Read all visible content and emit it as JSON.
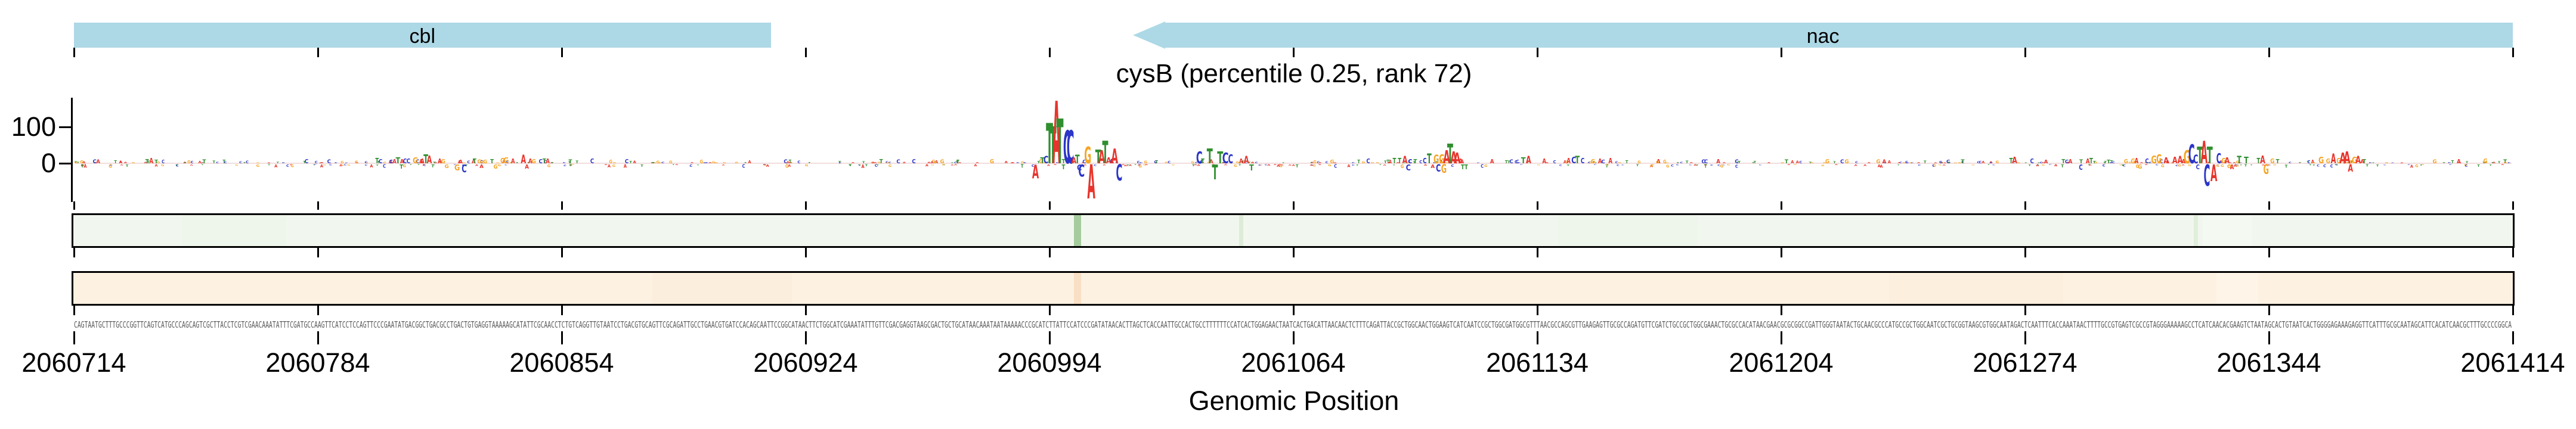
{
  "figure": {
    "title": "cysB (percentile 0.25, rank 72)",
    "xlabel": "Genomic Position"
  },
  "chart_data": {
    "type": "genomic-logo",
    "title": "cysB (percentile 0.25, rank 72)",
    "xlabel": "Genomic Position",
    "x_axis": {
      "start": 2060714,
      "end": 2061414,
      "tick_interval": 70,
      "ticks": [
        2060714,
        2060784,
        2060854,
        2060924,
        2060994,
        2061064,
        2061134,
        2061204,
        2061274,
        2061344,
        2061414
      ]
    },
    "y_axis": {
      "ticks": [
        {
          "value": 100
        },
        {
          "value": 0
        }
      ]
    },
    "gene_color": "#add8e6",
    "genes": [
      {
        "name": "cbl",
        "start": 2060714,
        "end": 2060914,
        "strand": "+"
      },
      {
        "name": "nac",
        "start": 2061018,
        "end": 2061414,
        "strand": "-"
      }
    ],
    "tracks": [
      {
        "id": "upper",
        "fill": "#f1f7ee",
        "stripes": [
          {
            "pos": 2061002,
            "width_bp": 2,
            "color": "#a5cc9d"
          },
          {
            "pos": 2061049,
            "width_bp": 1.2,
            "color": "#ddecd8"
          },
          {
            "pos": 2061323,
            "width_bp": 1.2,
            "color": "#e0eedb"
          },
          {
            "pos": 2060760,
            "width_bp": 30,
            "color": "#eef5ea"
          },
          {
            "pos": 2061160,
            "width_bp": 40,
            "color": "#eef5eb"
          },
          {
            "pos": 2061332,
            "width_bp": 14,
            "color": "#f4f9f2"
          }
        ]
      },
      {
        "id": "lower",
        "fill": "#fdf1e2",
        "stripes": [
          {
            "pos": 2061002,
            "width_bp": 2,
            "color": "#f9dfc4"
          },
          {
            "pos": 2060900,
            "width_bp": 40,
            "color": "#fceedd"
          },
          {
            "pos": 2061260,
            "width_bp": 50,
            "color": "#fcefde"
          },
          {
            "pos": 2061335,
            "width_bp": 12,
            "color": "#fef4e8"
          }
        ]
      }
    ],
    "logo": {
      "colors": {
        "A": "#e8342c",
        "C": "#2b35c7",
        "G": "#f5a525",
        "T": "#2f8f2f"
      },
      "noise": {
        "seed": 1337,
        "count": 630,
        "h_max": 6
      },
      "letters": [
        [
          2060735,
          "T",
          7
        ],
        [
          2060736.2,
          "A",
          9
        ],
        [
          2060737.6,
          "T",
          6
        ],
        [
          2060801,
          "T",
          9
        ],
        [
          2060802,
          "C",
          7
        ],
        [
          2060805,
          "C",
          6
        ],
        [
          2060806,
          "A",
          7
        ],
        [
          2060807,
          "T",
          10
        ],
        [
          2060808,
          "T",
          -7
        ],
        [
          2060809,
          "C",
          8
        ],
        [
          2060810,
          "C",
          8
        ],
        [
          2060812,
          "G",
          10
        ],
        [
          2060814,
          "A",
          8
        ],
        [
          2060815,
          "T",
          15
        ],
        [
          2060816,
          "A",
          13
        ],
        [
          2060817,
          "T",
          -5
        ],
        [
          2060819,
          "A",
          8
        ],
        [
          2060820,
          "G",
          7
        ],
        [
          2060821,
          "G",
          -6
        ],
        [
          2060824,
          "G",
          -10
        ],
        [
          2060825,
          "A",
          6
        ],
        [
          2060826,
          "C",
          -13
        ],
        [
          2060829,
          "T",
          8
        ],
        [
          2060831,
          "A",
          -6
        ],
        [
          2060832,
          "G",
          6
        ],
        [
          2060834,
          "T",
          7
        ],
        [
          2060835,
          "G",
          -7
        ],
        [
          2060837,
          "G",
          9
        ],
        [
          2060838,
          "G",
          10
        ],
        [
          2060840,
          "A",
          8
        ],
        [
          2060843,
          "A",
          14
        ],
        [
          2060844,
          "A",
          -7
        ],
        [
          2060845,
          "A",
          8
        ],
        [
          2060846,
          "G",
          7
        ],
        [
          2060849,
          "T",
          8
        ],
        [
          2060850,
          "A",
          8
        ],
        [
          2060990,
          "A",
          -23
        ],
        [
          2060992,
          "T",
          10
        ],
        [
          2060993,
          "C",
          12
        ],
        [
          2060994,
          "T",
          68
        ],
        [
          2060995,
          "T",
          62
        ],
        [
          2060996,
          "A",
          105
        ],
        [
          2060997,
          "T",
          75
        ],
        [
          2060998,
          "T",
          -8
        ],
        [
          2060999,
          "C",
          55
        ],
        [
          2061000,
          "C",
          55
        ],
        [
          2061001,
          "A",
          10
        ],
        [
          2061002,
          "T",
          14
        ],
        [
          2061002.6,
          "C",
          -10
        ],
        [
          2061003.2,
          "C",
          -20
        ],
        [
          2061004,
          "C",
          6
        ],
        [
          2061005,
          "G",
          28
        ],
        [
          2061006,
          "A",
          -57
        ],
        [
          2061008,
          "T",
          23
        ],
        [
          2061009,
          "A",
          22
        ],
        [
          2061010,
          "T",
          38
        ],
        [
          2061011,
          "A",
          10
        ],
        [
          2061012,
          "C",
          8
        ],
        [
          2061012.7,
          "A",
          25
        ],
        [
          2061014,
          "C",
          -27
        ],
        [
          2061037,
          "C",
          20
        ],
        [
          2061038,
          "T",
          8
        ],
        [
          2061040,
          "T",
          25
        ],
        [
          2061041.5,
          "T",
          -25
        ],
        [
          2061043,
          "T",
          20
        ],
        [
          2061044.5,
          "C",
          18
        ],
        [
          2061046,
          "C",
          15
        ],
        [
          2061049,
          "A",
          8
        ],
        [
          2061050.5,
          "A",
          12
        ],
        [
          2061052,
          "T",
          -10
        ],
        [
          2061093,
          "T",
          9
        ],
        [
          2061094.5,
          "T",
          9
        ],
        [
          2061096,
          "A",
          12
        ],
        [
          2061097,
          "C",
          -10
        ],
        [
          2061099,
          "T",
          7
        ],
        [
          2061101.7,
          "C",
          9
        ],
        [
          2061103,
          "T",
          16
        ],
        [
          2061104,
          "A",
          -6
        ],
        [
          2061105,
          "G",
          14
        ],
        [
          2061105.6,
          "C",
          -12
        ],
        [
          2061106.6,
          "G",
          15
        ],
        [
          2061107.2,
          "G",
          -14
        ],
        [
          2061108,
          "A",
          22
        ],
        [
          2061109,
          "T",
          33
        ],
        [
          2061110,
          "A",
          20
        ],
        [
          2061111,
          "A",
          18
        ],
        [
          2061112,
          "A",
          8
        ],
        [
          2061112.6,
          "T",
          -8
        ],
        [
          2061113.6,
          "T",
          -8
        ],
        [
          2061130,
          "T",
          10
        ],
        [
          2061131.5,
          "A",
          12
        ],
        [
          2061136,
          "A",
          8
        ],
        [
          2061143,
          "A",
          9
        ],
        [
          2061144.5,
          "C",
          11
        ],
        [
          2061145.5,
          "T",
          12
        ],
        [
          2061147,
          "C",
          9
        ],
        [
          2061150,
          "G",
          7
        ],
        [
          2061152,
          "A",
          8
        ],
        [
          2061155,
          "A",
          9
        ],
        [
          2061270,
          "T",
          9
        ],
        [
          2061271,
          "A",
          11
        ],
        [
          2061276,
          "C",
          8
        ],
        [
          2061280,
          "A",
          6
        ],
        [
          2061285,
          "T",
          7
        ],
        [
          2061286,
          "C",
          6
        ],
        [
          2061287,
          "A",
          7
        ],
        [
          2061290,
          "C",
          -9
        ],
        [
          2061292,
          "A",
          8
        ],
        [
          2061293,
          "T",
          9
        ],
        [
          2061298,
          "T",
          6
        ],
        [
          2061303,
          "G",
          7
        ],
        [
          2061305,
          "G",
          8
        ],
        [
          2061306,
          "A",
          9
        ],
        [
          2061307,
          "G",
          -7
        ],
        [
          2061309,
          "C",
          8
        ],
        [
          2061311,
          "G",
          13
        ],
        [
          2061312.5,
          "G",
          15
        ],
        [
          2061314.5,
          "A",
          10
        ],
        [
          2061317,
          "A",
          11
        ],
        [
          2061318.5,
          "A",
          12
        ],
        [
          2061319.5,
          "A",
          7
        ],
        [
          2061320.5,
          "G",
          22
        ],
        [
          2061321.8,
          "C",
          32
        ],
        [
          2061323,
          "C",
          14
        ],
        [
          2061323.6,
          "C",
          -8
        ],
        [
          2061324.2,
          "T",
          28
        ],
        [
          2061325.4,
          "A",
          38
        ],
        [
          2061326.2,
          "C",
          -36
        ],
        [
          2061327,
          "T",
          28
        ],
        [
          2061328.2,
          "A",
          -28
        ],
        [
          2061329.6,
          "C",
          17
        ],
        [
          2061331,
          "G",
          9
        ],
        [
          2061332,
          "A",
          10
        ],
        [
          2061332.6,
          "G",
          -6
        ],
        [
          2061333.4,
          "A",
          -8
        ],
        [
          2061335.5,
          "T",
          12
        ],
        [
          2061337.5,
          "T",
          11
        ],
        [
          2061341,
          "T",
          9
        ],
        [
          2061342.2,
          "A",
          13
        ],
        [
          2061343.2,
          "G",
          -16
        ],
        [
          2061345,
          "G",
          8
        ],
        [
          2061346.5,
          "T",
          7
        ],
        [
          2061359,
          "G",
          11
        ],
        [
          2061361,
          "G",
          8
        ],
        [
          2061362.5,
          "A",
          16
        ],
        [
          2061364,
          "G",
          9
        ],
        [
          2061365.2,
          "A",
          18
        ],
        [
          2061366.4,
          "A",
          20
        ],
        [
          2061367.4,
          "A",
          -12
        ],
        [
          2061368.6,
          "G",
          11
        ],
        [
          2061369.6,
          "A",
          12
        ]
      ]
    },
    "sequence": "CAGTAATGCTTTGCCCGGTTCAGTCATGCCCAGCAGTCGCTTACCTCGTCGAACAAATATTTCGATGCCAAGTTCATCCTCCAGTTCCCGAATATGACGGCTGACGCCTGACTGTGAGGTAAAAAGCATATTCGCAACCTCTGTCAGGTTGTAATCCTGACGTGCAGTTCGCAGATTGCCTGAACGTGATCCACAGCAATTCCGGCATAACTTCTGGCATCGAAATATTTGTTCGACGAGGTAAGCGACTGCTGCATAACAAATAATAAAAACCCGCATCTTATTCCATCCCGATATAACACTTAGCTCACCAATTGCCACTGCCTTTTTTCCATCACTGGAGAACTAATCACTGACATTAACAACTCTTTCAGATTACCGCTGGCAACTGGAAGTCATCAATCCGCTGGCGATGGCGTTTAACGCCAGCGTTGAAGAGTTGCGCCAGATGTTCGATCTGCCGCTGGCGAAACTGCGCCACATAACGAACGCGCGGCCGATTGGGTAATACTGCAACGCCCATGCCGCTGGCAATCGCTGCGGTAAGCGTGGCAATAGACTCAATTTCACCAAATAACTTTTGCCGTGAGTCGCCGTAGGGAAAAAGCCTCATCAACACGAAGTCTAATAGCACTGTAATCACTGGGGAGAAAGAGGTTCATTTGCGCAATAGCATTCACATCAACGCTTTGCCCCGGCA"
  }
}
